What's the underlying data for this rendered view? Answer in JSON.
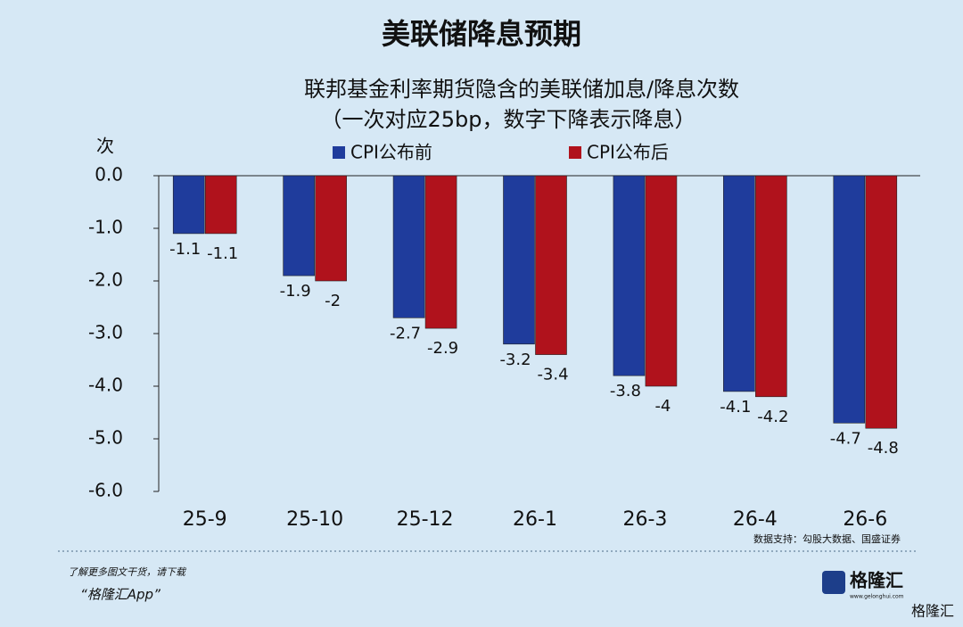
{
  "chart_data": {
    "type": "bar",
    "title": "美联储降息预期",
    "subtitle": [
      "联邦基金利率期货隐含的美联储加息/降息次数",
      "（一次对应25bp，数字下降表示降息）"
    ],
    "y_label": "次",
    "source": "数据支持：勾股大数据、国盛证券",
    "categories": [
      "25-9",
      "25-10",
      "25-12",
      "26-1",
      "26-3",
      "26-4",
      "26-6"
    ],
    "series": [
      {
        "name": "CPI公布前",
        "color": "#1f3c9c",
        "values": [
          -1.1,
          -1.9,
          -2.7,
          -3.2,
          -3.8,
          -4.1,
          -4.7
        ]
      },
      {
        "name": "CPI公布后",
        "color": "#b0121c",
        "values": [
          -1.1,
          -2.0,
          -2.9,
          -3.4,
          -4.0,
          -4.2,
          -4.8
        ]
      }
    ],
    "ylim": [
      -6,
      0
    ],
    "yticks": [
      {
        "value": 0,
        "label": "0.0"
      },
      {
        "value": -1,
        "label": "-1.0"
      },
      {
        "value": -2,
        "label": "-2.0"
      },
      {
        "value": -3,
        "label": "-3.0"
      },
      {
        "value": -4,
        "label": "-4.0"
      },
      {
        "value": -5,
        "label": "-5.0"
      },
      {
        "value": -6,
        "label": "-6.0"
      }
    ],
    "grid": false
  },
  "footer": {
    "note": "了解更多图文干货，请下载",
    "app": "“格隆汇App”",
    "logo": "格隆汇",
    "logo_url": "www.gelonghui.com",
    "watermark": "格隆汇"
  }
}
